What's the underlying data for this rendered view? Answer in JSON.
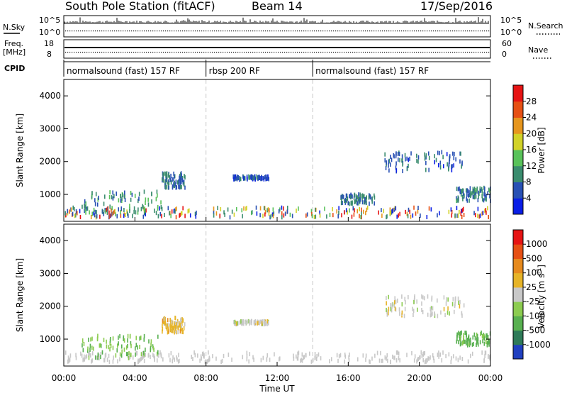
{
  "header": {
    "title": "South Pole Station (fitACF)",
    "beam": "Beam 14",
    "date": "17/Sep/2016"
  },
  "top_panels": {
    "nsky_label": "N.Sky",
    "nsky_ticks": [
      "10^5",
      "10^0"
    ],
    "nsearch_label": "N.Search",
    "nsearch_ticks": [
      "10^5",
      "10^0"
    ],
    "freq_label": "Freq.",
    "freq_unit": "[MHz]",
    "freq_ticks": [
      "18",
      "8"
    ],
    "nave_label": "Nave",
    "nave_ticks": [
      "60",
      "0"
    ],
    "cpid_label": "CPID",
    "cpid_segments": [
      {
        "label": "normalsound (fast) 157 RF",
        "start_hour": 0,
        "end_hour": 8
      },
      {
        "label": "rbsp 200 RF",
        "start_hour": 8,
        "end_hour": 14
      },
      {
        "label": "normalsound (fast) 157 RF",
        "start_hour": 14,
        "end_hour": 24
      }
    ]
  },
  "chart_data": [
    {
      "type": "heatmap",
      "title": "Power",
      "ylabel": "Slant Range [km]",
      "xlim": [
        0,
        24
      ],
      "ylim": [
        180,
        4500
      ],
      "yticks": [
        1000,
        2000,
        3000,
        4000
      ],
      "colorbar": {
        "label": "Power [dB]",
        "ticks": [
          "4",
          "8",
          "12",
          "16",
          "20",
          "24",
          "28"
        ],
        "range": [
          0,
          32
        ],
        "colors": [
          "#0a1ee6",
          "#2850b4",
          "#3a8c6e",
          "#59c25a",
          "#d2d228",
          "#e6961e",
          "#e65014",
          "#e61414"
        ]
      },
      "echo_regions": [
        {
          "name": "ground scatter band",
          "x": [
            0,
            24
          ],
          "range_km": [
            300,
            600
          ],
          "level": "mixed"
        },
        {
          "name": "morning patch",
          "x": [
            1.0,
            5.5
          ],
          "range_km": [
            400,
            1100
          ],
          "level": 10
        },
        {
          "name": "dawn cluster",
          "x": [
            5.5,
            6.8
          ],
          "range_km": [
            1200,
            1650
          ],
          "level": 8
        },
        {
          "name": "rbsp echo",
          "x": [
            9.5,
            11.5
          ],
          "range_km": [
            1450,
            1550
          ],
          "level": 6
        },
        {
          "name": "evening arc",
          "x": [
            18.0,
            22.5
          ],
          "range_km": [
            1700,
            2300
          ],
          "level": 7
        },
        {
          "name": "afternoon patch",
          "x": [
            15.5,
            17.5
          ],
          "range_km": [
            700,
            1000
          ],
          "level": 8
        },
        {
          "name": "late echoes",
          "x": [
            22.0,
            24.0
          ],
          "range_km": [
            800,
            1200
          ],
          "level": 9
        }
      ]
    },
    {
      "type": "heatmap",
      "title": "Velocity",
      "ylabel": "Slant Range [km]",
      "xlabel": "Time UT",
      "xlim": [
        0,
        24
      ],
      "ylim": [
        180,
        4500
      ],
      "yticks": [
        1000,
        2000,
        3000,
        4000
      ],
      "xticks": [
        "00:00",
        "04:00",
        "08:00",
        "12:00",
        "16:00",
        "20:00",
        "00:00"
      ],
      "colorbar": {
        "label": "Velocity",
        "unit": "[m s",
        "unit_sup": "-1",
        "unit_close": "]",
        "ticks": [
          "1000",
          "500",
          "100",
          "25",
          "-25",
          "-100",
          "-500",
          "-1000"
        ],
        "range": [
          -1000,
          1000
        ],
        "colors": [
          "#2040c0",
          "#2e7a58",
          "#58b050",
          "#8ccc50",
          "#c8c8c8",
          "#e6b428",
          "#e68a1e",
          "#e65014",
          "#e61414"
        ]
      },
      "echo_regions": [
        {
          "name": "ground scatter band",
          "x": [
            0,
            24
          ],
          "range_km": [
            300,
            600
          ],
          "velocity": "near zero"
        },
        {
          "name": "morning patch",
          "x": [
            1.0,
            5.5
          ],
          "range_km": [
            400,
            1100
          ],
          "velocity": -300
        },
        {
          "name": "dawn cluster",
          "x": [
            5.5,
            6.8
          ],
          "range_km": [
            1200,
            1650
          ],
          "velocity": 200
        },
        {
          "name": "rbsp echo",
          "x": [
            9.5,
            11.5
          ],
          "range_km": [
            1450,
            1550
          ],
          "velocity": 0
        },
        {
          "name": "evening arc",
          "x": [
            18.0,
            22.5
          ],
          "range_km": [
            1700,
            2300
          ],
          "velocity": 0
        },
        {
          "name": "late echoes",
          "x": [
            22.0,
            24.0
          ],
          "range_km": [
            800,
            1200
          ],
          "velocity": -400
        }
      ]
    }
  ]
}
